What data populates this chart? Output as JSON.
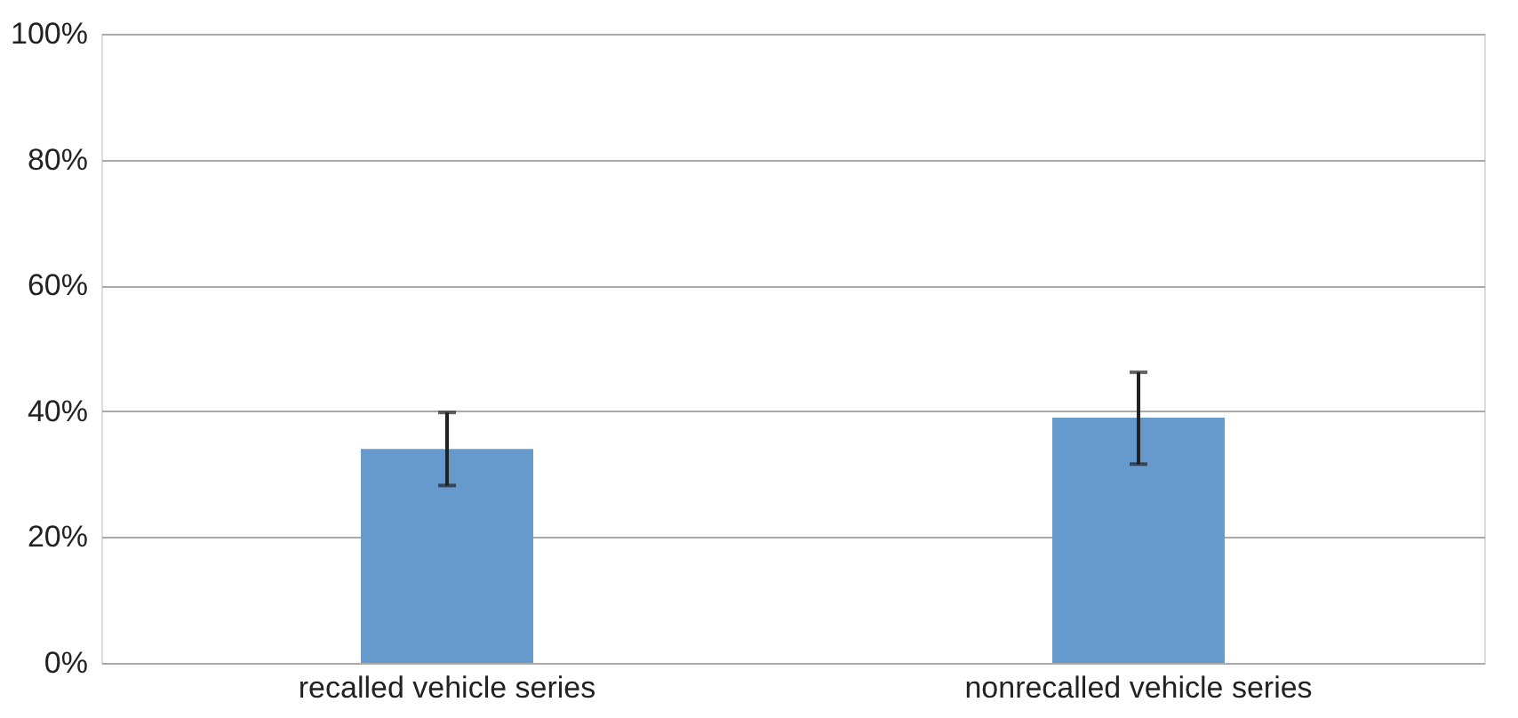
{
  "chart_data": {
    "type": "bar",
    "categories": [
      "recalled vehicle series",
      "nonrecalled vehicle series"
    ],
    "values": [
      34,
      39
    ],
    "errors": [
      [
        28.2,
        39.8
      ],
      [
        31.6,
        46.2
      ]
    ],
    "color": "#6699cc",
    "ylim": [
      0,
      100
    ],
    "yticks": [
      {
        "value": 0,
        "label": "0%"
      },
      {
        "value": 20,
        "label": "20%"
      },
      {
        "value": 40,
        "label": "40%"
      },
      {
        "value": 60,
        "label": "60%"
      },
      {
        "value": 80,
        "label": "80%"
      },
      {
        "value": 100,
        "label": "100%"
      }
    ],
    "grid": "y"
  }
}
